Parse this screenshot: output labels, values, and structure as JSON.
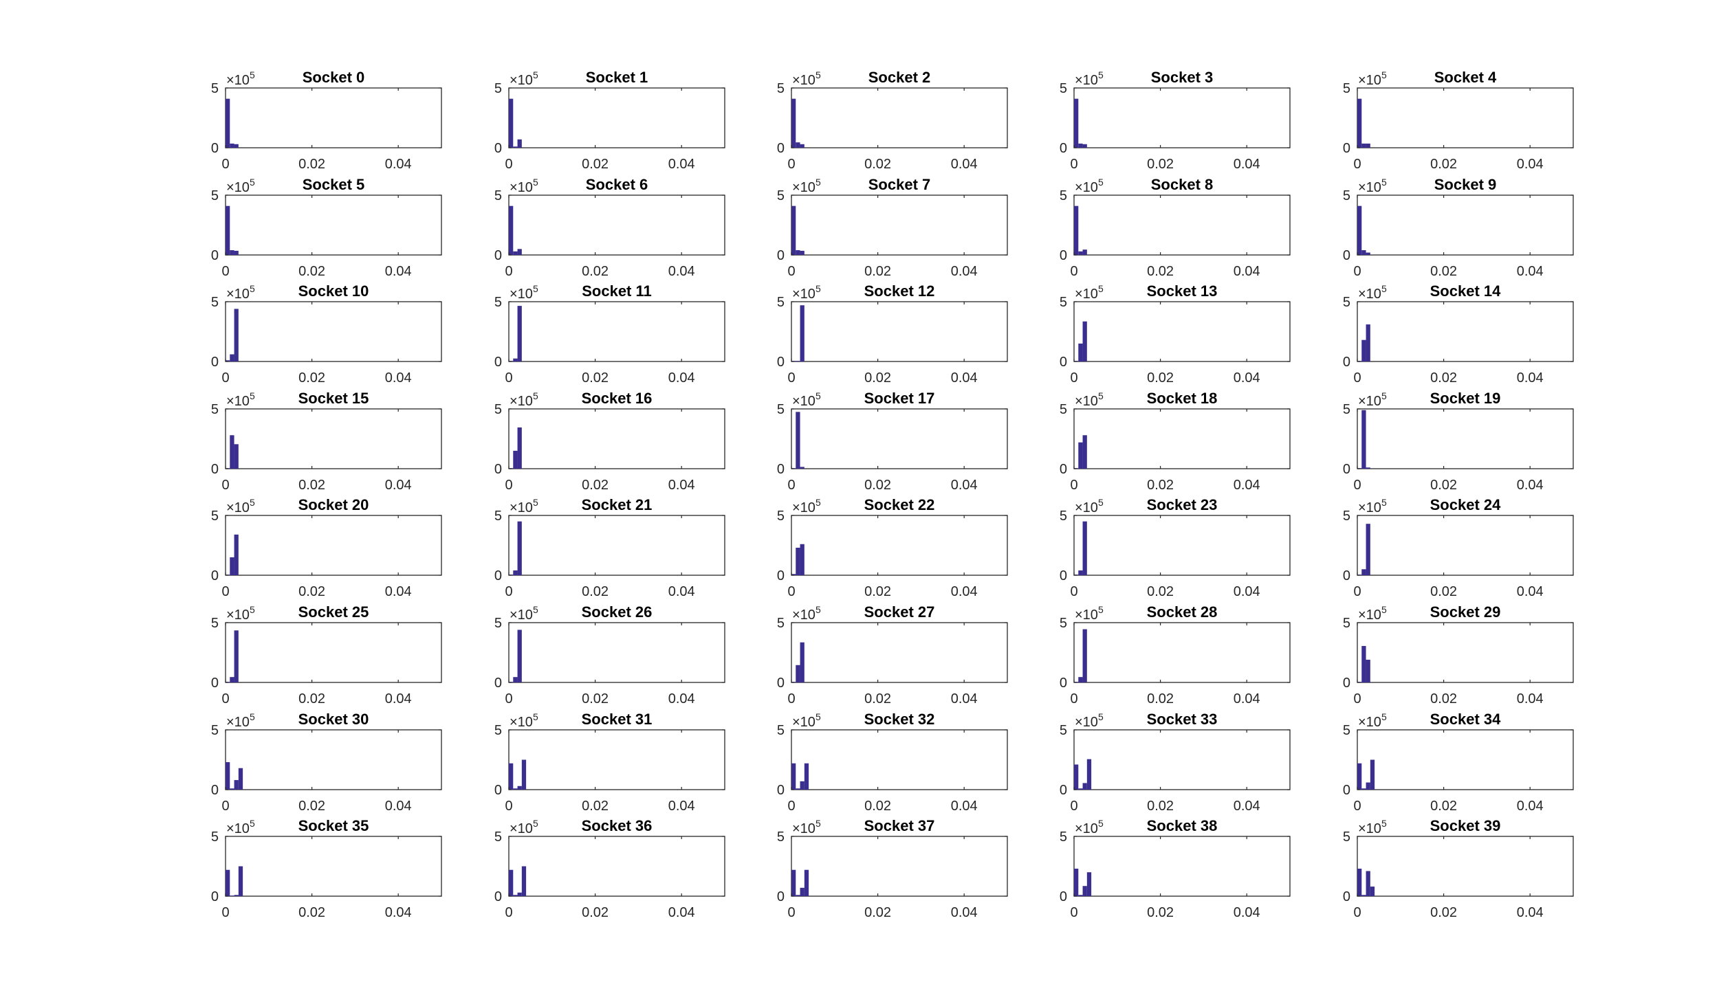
{
  "chart_data": {
    "type": "bar",
    "layout": "grid 8 rows x 5 columns of histograms",
    "multiplier_label": "×10",
    "multiplier_exponent": "5",
    "ylim": [
      0,
      5
    ],
    "yticks": [
      0,
      5
    ],
    "ytick_labels": [
      "0",
      "5"
    ],
    "xlim": [
      0,
      0.05
    ],
    "xticks": [
      0,
      0.02,
      0.04
    ],
    "xtick_labels": [
      "0",
      "0.02",
      "0.04"
    ],
    "bin_width": 0.001,
    "bar_color": "#3a2f8f",
    "grid": false,
    "panels": [
      {
        "title": "Socket 0",
        "bars": [
          4.1,
          0.35,
          0.3
        ]
      },
      {
        "title": "Socket 1",
        "bars": [
          4.1,
          0.1,
          0.7
        ]
      },
      {
        "title": "Socket 2",
        "bars": [
          4.1,
          0.45,
          0.3
        ]
      },
      {
        "title": "Socket 3",
        "bars": [
          4.1,
          0.35,
          0.3
        ]
      },
      {
        "title": "Socket 4",
        "bars": [
          4.1,
          0.35,
          0.35
        ]
      },
      {
        "title": "Socket 5",
        "bars": [
          4.1,
          0.4,
          0.35
        ]
      },
      {
        "title": "Socket 6",
        "bars": [
          4.1,
          0.3,
          0.5
        ]
      },
      {
        "title": "Socket 7",
        "bars": [
          4.1,
          0.4,
          0.35
        ]
      },
      {
        "title": "Socket 8",
        "bars": [
          4.1,
          0.3,
          0.45
        ]
      },
      {
        "title": "Socket 9",
        "bars": [
          4.1,
          0.4,
          0.2
        ]
      },
      {
        "title": "Socket 10",
        "bars": [
          0.1,
          0.6,
          4.4
        ]
      },
      {
        "title": "Socket 11",
        "bars": [
          0.05,
          0.25,
          4.65
        ]
      },
      {
        "title": "Socket 12",
        "bars": [
          0.05,
          0.05,
          4.7
        ]
      },
      {
        "title": "Socket 13",
        "bars": [
          0.05,
          1.5,
          3.35
        ]
      },
      {
        "title": "Socket 14",
        "bars": [
          0.05,
          1.8,
          3.1
        ]
      },
      {
        "title": "Socket 15",
        "bars": [
          0.05,
          2.8,
          2.05
        ]
      },
      {
        "title": "Socket 16",
        "bars": [
          0.05,
          1.5,
          3.45
        ]
      },
      {
        "title": "Socket 17",
        "bars": [
          0.05,
          4.75,
          0.15
        ]
      },
      {
        "title": "Socket 18",
        "bars": [
          0.05,
          2.2,
          2.8
        ]
      },
      {
        "title": "Socket 19",
        "bars": [
          0.05,
          4.9,
          0.1
        ]
      },
      {
        "title": "Socket 20",
        "bars": [
          0.05,
          1.5,
          3.4
        ]
      },
      {
        "title": "Socket 21",
        "bars": [
          0.05,
          0.4,
          4.5
        ]
      },
      {
        "title": "Socket 22",
        "bars": [
          0.1,
          2.3,
          2.6
        ]
      },
      {
        "title": "Socket 23",
        "bars": [
          0.05,
          0.4,
          4.5
        ]
      },
      {
        "title": "Socket 24",
        "bars": [
          0.05,
          0.5,
          4.3
        ]
      },
      {
        "title": "Socket 25",
        "bars": [
          0.05,
          0.45,
          4.35
        ]
      },
      {
        "title": "Socket 26",
        "bars": [
          0.05,
          0.45,
          4.4
        ]
      },
      {
        "title": "Socket 27",
        "bars": [
          0.05,
          1.45,
          3.35
        ]
      },
      {
        "title": "Socket 28",
        "bars": [
          0.05,
          0.45,
          4.45
        ]
      },
      {
        "title": "Socket 29",
        "bars": [
          0.05,
          3.05,
          1.9
        ]
      },
      {
        "title": "Socket 30",
        "bars": [
          2.3,
          0.1,
          0.8,
          1.8
        ]
      },
      {
        "title": "Socket 31",
        "bars": [
          2.2,
          0.1,
          0.3,
          2.5
        ]
      },
      {
        "title": "Socket 32",
        "bars": [
          2.2,
          0.1,
          0.7,
          2.2
        ]
      },
      {
        "title": "Socket 33",
        "bars": [
          2.1,
          0.1,
          0.55,
          2.55
        ]
      },
      {
        "title": "Socket 34",
        "bars": [
          2.2,
          0.1,
          0.6,
          2.5
        ]
      },
      {
        "title": "Socket 35",
        "bars": [
          2.2,
          0.05,
          0.1,
          2.5
        ]
      },
      {
        "title": "Socket 36",
        "bars": [
          2.2,
          0.1,
          0.3,
          2.5
        ]
      },
      {
        "title": "Socket 37",
        "bars": [
          2.2,
          0.1,
          0.7,
          2.2
        ]
      },
      {
        "title": "Socket 38",
        "bars": [
          2.3,
          0.1,
          0.85,
          2.0
        ]
      },
      {
        "title": "Socket 39",
        "bars": [
          2.3,
          0.1,
          2.1,
          0.8
        ]
      }
    ]
  }
}
